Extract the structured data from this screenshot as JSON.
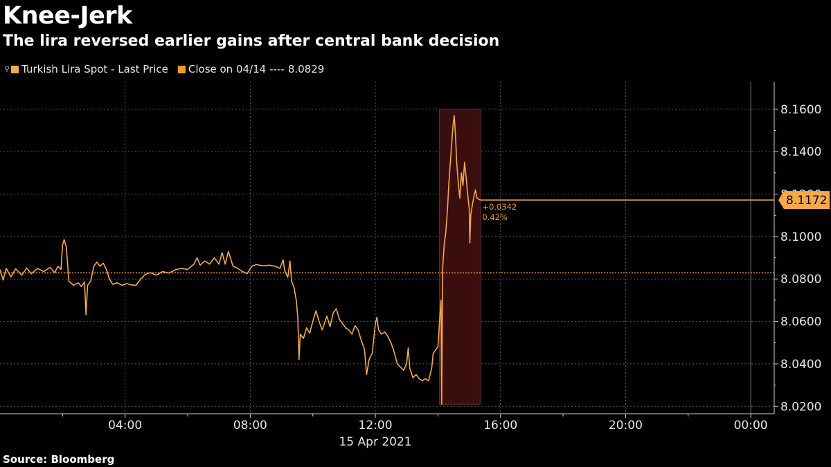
{
  "chart_data": {
    "type": "line",
    "title": "Knee-Jerk",
    "subtitle": "The lira reversed earlier gains after central bank decision",
    "source": "Source: Bloomberg",
    "date_label": "15 Apr 2021",
    "series": [
      {
        "name": "Turkish Lira Spot - Last Price",
        "color": "#f6a94a",
        "points": [
          [
            0.0,
            8.0845
          ],
          [
            0.1,
            8.0795
          ],
          [
            0.2,
            8.085
          ],
          [
            0.35,
            8.081
          ],
          [
            0.5,
            8.0848
          ],
          [
            0.7,
            8.0818
          ],
          [
            0.85,
            8.0852
          ],
          [
            1.0,
            8.0825
          ],
          [
            1.2,
            8.085
          ],
          [
            1.4,
            8.0835
          ],
          [
            1.6,
            8.0855
          ],
          [
            1.75,
            8.083
          ],
          [
            1.85,
            8.086
          ],
          [
            1.95,
            8.0845
          ],
          [
            2.0,
            8.096
          ],
          [
            2.05,
            8.0985
          ],
          [
            2.12,
            8.095
          ],
          [
            2.2,
            8.079
          ],
          [
            2.35,
            8.077
          ],
          [
            2.5,
            8.0782
          ],
          [
            2.6,
            8.0765
          ],
          [
            2.7,
            8.0785
          ],
          [
            2.75,
            8.063
          ],
          [
            2.8,
            8.077
          ],
          [
            2.9,
            8.079
          ],
          [
            3.0,
            8.086
          ],
          [
            3.1,
            8.088
          ],
          [
            3.2,
            8.086
          ],
          [
            3.3,
            8.0875
          ],
          [
            3.4,
            8.0845
          ],
          [
            3.5,
            8.08
          ],
          [
            3.6,
            8.0775
          ],
          [
            3.75,
            8.0782
          ],
          [
            3.9,
            8.077
          ],
          [
            4.05,
            8.0778
          ],
          [
            4.2,
            8.0772
          ],
          [
            4.35,
            8.077
          ],
          [
            4.5,
            8.08
          ],
          [
            4.65,
            8.0822
          ],
          [
            4.8,
            8.083
          ],
          [
            5.0,
            8.0818
          ],
          [
            5.2,
            8.0835
          ],
          [
            5.4,
            8.0828
          ],
          [
            5.6,
            8.0843
          ],
          [
            5.8,
            8.085
          ],
          [
            6.0,
            8.0845
          ],
          [
            6.2,
            8.087
          ],
          [
            6.3,
            8.09
          ],
          [
            6.4,
            8.0865
          ],
          [
            6.55,
            8.0885
          ],
          [
            6.7,
            8.087
          ],
          [
            6.85,
            8.09
          ],
          [
            7.0,
            8.087
          ],
          [
            7.1,
            8.0925
          ],
          [
            7.2,
            8.087
          ],
          [
            7.3,
            8.093
          ],
          [
            7.45,
            8.086
          ],
          [
            7.6,
            8.085
          ],
          [
            7.75,
            8.0835
          ],
          [
            7.9,
            8.0825
          ],
          [
            8.05,
            8.086
          ],
          [
            8.2,
            8.0868
          ],
          [
            8.4,
            8.0862
          ],
          [
            8.6,
            8.0865
          ],
          [
            8.8,
            8.086
          ],
          [
            8.95,
            8.085
          ],
          [
            9.05,
            8.089
          ],
          [
            9.1,
            8.084
          ],
          [
            9.2,
            8.0808
          ],
          [
            9.27,
            8.0885
          ],
          [
            9.32,
            8.079
          ],
          [
            9.4,
            8.076
          ],
          [
            9.47,
            8.07
          ],
          [
            9.52,
            8.062
          ],
          [
            9.56,
            8.042
          ],
          [
            9.6,
            8.054
          ],
          [
            9.7,
            8.052
          ],
          [
            9.8,
            8.057
          ],
          [
            9.9,
            8.0545
          ],
          [
            10.0,
            8.06
          ],
          [
            10.1,
            8.065
          ],
          [
            10.2,
            8.06
          ],
          [
            10.3,
            8.056
          ],
          [
            10.45,
            8.0625
          ],
          [
            10.55,
            8.0575
          ],
          [
            10.65,
            8.064
          ],
          [
            10.75,
            8.066
          ],
          [
            10.85,
            8.061
          ],
          [
            10.95,
            8.059
          ],
          [
            11.05,
            8.057
          ],
          [
            11.15,
            8.056
          ],
          [
            11.25,
            8.054
          ],
          [
            11.35,
            8.058
          ],
          [
            11.45,
            8.056
          ],
          [
            11.55,
            8.051
          ],
          [
            11.65,
            8.047
          ],
          [
            11.72,
            8.035
          ],
          [
            11.8,
            8.042
          ],
          [
            11.9,
            8.045
          ],
          [
            12.0,
            8.059
          ],
          [
            12.05,
            8.062
          ],
          [
            12.1,
            8.056
          ],
          [
            12.2,
            8.054
          ],
          [
            12.3,
            8.055
          ],
          [
            12.4,
            8.053
          ],
          [
            12.5,
            8.05
          ],
          [
            12.6,
            8.0455
          ],
          [
            12.7,
            8.04
          ],
          [
            12.8,
            8.0385
          ],
          [
            12.9,
            8.037
          ],
          [
            13.0,
            8.04
          ],
          [
            13.05,
            8.0475
          ],
          [
            13.1,
            8.038
          ],
          [
            13.2,
            8.0335
          ],
          [
            13.3,
            8.035
          ],
          [
            13.4,
            8.033
          ],
          [
            13.5,
            8.032
          ],
          [
            13.6,
            8.033
          ],
          [
            13.7,
            8.032
          ],
          [
            13.8,
            8.038
          ],
          [
            13.85,
            8.045
          ],
          [
            13.95,
            8.047
          ],
          [
            14.0,
            8.048
          ],
          [
            14.05,
            8.06
          ],
          [
            14.1,
            8.07
          ],
          [
            14.12,
            8.021
          ],
          [
            14.15,
            8.085
          ],
          [
            14.2,
            8.096
          ],
          [
            14.25,
            8.102
          ],
          [
            14.3,
            8.112
          ],
          [
            14.35,
            8.125
          ],
          [
            14.42,
            8.14
          ],
          [
            14.48,
            8.152
          ],
          [
            14.52,
            8.157
          ],
          [
            14.56,
            8.148
          ],
          [
            14.6,
            8.135
          ],
          [
            14.65,
            8.125
          ],
          [
            14.7,
            8.118
          ],
          [
            14.75,
            8.13
          ],
          [
            14.8,
            8.124
          ],
          [
            14.85,
            8.135
          ],
          [
            14.9,
            8.128
          ],
          [
            14.95,
            8.12
          ],
          [
            15.0,
            8.113
          ],
          [
            15.02,
            8.097
          ],
          [
            15.05,
            8.11
          ],
          [
            15.1,
            8.115
          ],
          [
            15.15,
            8.119
          ],
          [
            15.2,
            8.122
          ],
          [
            15.25,
            8.118
          ],
          [
            15.35,
            8.1172
          ]
        ],
        "last_value": "8.1172",
        "change": "+0.0342",
        "change_pct": "0.42%"
      }
    ],
    "reference_line": {
      "name": "Close on 04/14",
      "dashes": "----",
      "value": 8.0829,
      "value_label": "8.0829",
      "color": "#f39a22"
    },
    "highlight_x_range": [
      14.05,
      15.35
    ],
    "x_range": [
      0,
      24.75
    ],
    "x_ticks": [
      {
        "x": 4,
        "label": "04:00"
      },
      {
        "x": 8,
        "label": "08:00"
      },
      {
        "x": 12,
        "label": "12:00"
      },
      {
        "x": 16,
        "label": "16:00"
      },
      {
        "x": 20,
        "label": "20:00"
      },
      {
        "x": 24,
        "label": "00:00"
      }
    ],
    "x_minor_ticks": [
      2,
      6,
      10,
      14,
      18,
      22
    ],
    "ylim": [
      8.0165,
      8.173
    ],
    "y_ticks": [
      {
        "v": 8.02,
        "label": "8.0200"
      },
      {
        "v": 8.04,
        "label": "8.0400"
      },
      {
        "v": 8.06,
        "label": "8.0600"
      },
      {
        "v": 8.08,
        "label": "8.0800"
      },
      {
        "v": 8.1,
        "label": "8.1000"
      },
      {
        "v": 8.12,
        "label": "8.1200"
      },
      {
        "v": 8.14,
        "label": "8.1400"
      },
      {
        "v": 8.16,
        "label": "8.1600"
      }
    ],
    "grid": true,
    "legend_position": "top-left"
  }
}
